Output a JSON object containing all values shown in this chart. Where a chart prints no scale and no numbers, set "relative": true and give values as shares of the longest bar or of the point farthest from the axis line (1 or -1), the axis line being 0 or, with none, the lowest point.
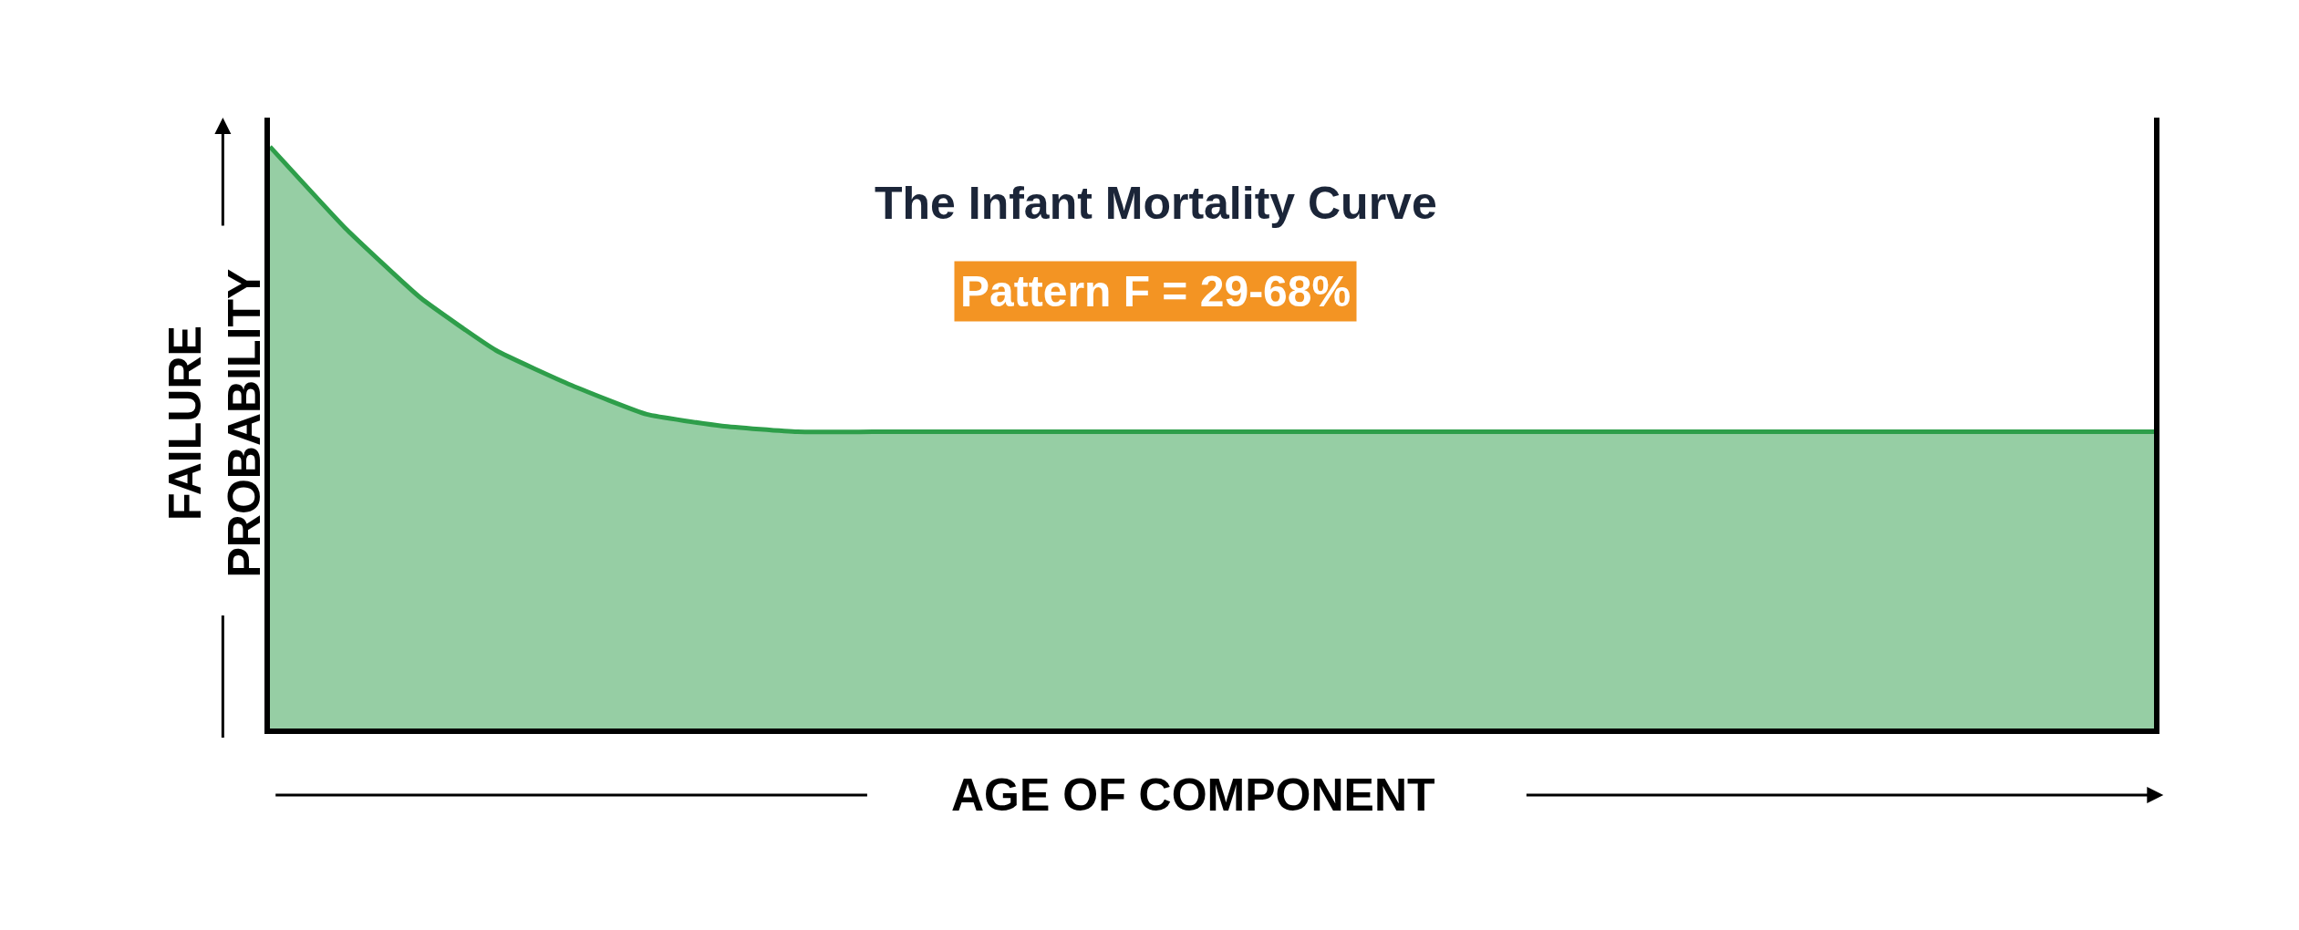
{
  "chart_data": {
    "type": "area",
    "title": "The Infant Mortality Curve",
    "subtitle": "Pattern F = 29-68%",
    "xlabel": "AGE OF COMPONENT",
    "ylabel": "FAILURE\nPROBABILITY",
    "relative": true,
    "categories": [
      null,
      null,
      null,
      null,
      null,
      null,
      null,
      null,
      null,
      null,
      null,
      null,
      null,
      null,
      null,
      null,
      null,
      null,
      null,
      null,
      null,
      null,
      null,
      null,
      null,
      null
    ],
    "series": [
      {
        "color": "#2e9e4a",
        "values": [
          1.0,
          0.86,
          0.74,
          0.65,
          0.59,
          0.54,
          0.52,
          0.51,
          0.51,
          0.51,
          0.51,
          0.51,
          0.51,
          0.51,
          0.51,
          0.51,
          0.51,
          0.51,
          0.51,
          0.51,
          0.51,
          0.51,
          0.51,
          0.51,
          0.51,
          0.51
        ]
      }
    ],
    "marker": "none"
  }
}
